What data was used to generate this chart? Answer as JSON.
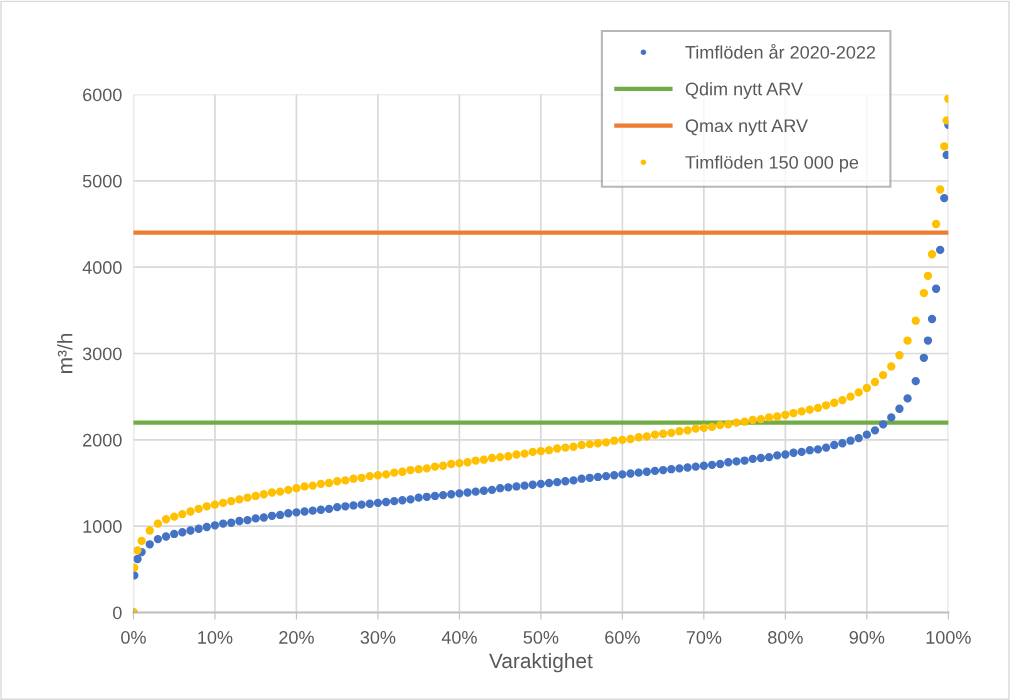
{
  "chart_data": {
    "type": "scatter",
    "xlabel": "Varaktighet",
    "ylabel": "m³/h",
    "x": [
      0,
      0.1,
      0.5,
      1,
      2,
      3,
      4,
      5,
      6,
      7,
      8,
      9,
      10,
      11,
      12,
      13,
      14,
      15,
      16,
      17,
      18,
      19,
      20,
      21,
      22,
      23,
      24,
      25,
      26,
      27,
      28,
      29,
      30,
      31,
      32,
      33,
      34,
      35,
      36,
      37,
      38,
      39,
      40,
      41,
      42,
      43,
      44,
      45,
      46,
      47,
      48,
      49,
      50,
      51,
      52,
      53,
      54,
      55,
      56,
      57,
      58,
      59,
      60,
      61,
      62,
      63,
      64,
      65,
      66,
      67,
      68,
      69,
      70,
      71,
      72,
      73,
      74,
      75,
      76,
      77,
      78,
      79,
      80,
      81,
      82,
      83,
      84,
      85,
      86,
      87,
      88,
      89,
      90,
      91,
      92,
      93,
      94,
      95,
      96,
      97,
      97.5,
      98,
      98.5,
      99,
      99.5,
      99.8,
      100
    ],
    "series": [
      {
        "name": "Timflöden år 2020-2022",
        "marker": "circle",
        "color": "#4472c4",
        "values": [
          0,
          430,
          620,
          700,
          790,
          850,
          880,
          910,
          930,
          950,
          970,
          990,
          1010,
          1030,
          1040,
          1060,
          1070,
          1090,
          1100,
          1120,
          1130,
          1150,
          1160,
          1170,
          1180,
          1190,
          1200,
          1220,
          1230,
          1240,
          1250,
          1260,
          1270,
          1280,
          1290,
          1300,
          1310,
          1330,
          1340,
          1350,
          1360,
          1370,
          1380,
          1390,
          1400,
          1410,
          1420,
          1440,
          1450,
          1460,
          1470,
          1480,
          1490,
          1500,
          1510,
          1520,
          1530,
          1550,
          1560,
          1570,
          1580,
          1590,
          1600,
          1610,
          1620,
          1630,
          1640,
          1650,
          1660,
          1670,
          1680,
          1690,
          1700,
          1710,
          1720,
          1740,
          1750,
          1760,
          1780,
          1790,
          1800,
          1820,
          1830,
          1850,
          1860,
          1880,
          1890,
          1910,
          1940,
          1960,
          1990,
          2020,
          2060,
          2110,
          2180,
          2260,
          2360,
          2480,
          2680,
          2950,
          3150,
          3400,
          3750,
          4200,
          4800,
          5300,
          5650
        ]
      },
      {
        "name": "Timflöden 150 000 pe",
        "marker": "circle",
        "color": "#ffc000",
        "values": [
          0,
          520,
          720,
          830,
          950,
          1030,
          1080,
          1110,
          1140,
          1170,
          1200,
          1230,
          1250,
          1270,
          1290,
          1310,
          1330,
          1350,
          1370,
          1390,
          1400,
          1420,
          1440,
          1460,
          1470,
          1490,
          1500,
          1520,
          1530,
          1550,
          1560,
          1580,
          1590,
          1600,
          1620,
          1630,
          1650,
          1660,
          1670,
          1690,
          1700,
          1720,
          1730,
          1740,
          1760,
          1770,
          1790,
          1800,
          1810,
          1830,
          1840,
          1860,
          1870,
          1880,
          1900,
          1910,
          1920,
          1940,
          1950,
          1960,
          1970,
          1990,
          2000,
          2010,
          2030,
          2040,
          2060,
          2070,
          2080,
          2100,
          2110,
          2130,
          2140,
          2150,
          2170,
          2180,
          2200,
          2210,
          2230,
          2240,
          2260,
          2270,
          2290,
          2310,
          2330,
          2350,
          2370,
          2400,
          2430,
          2460,
          2500,
          2550,
          2600,
          2670,
          2750,
          2850,
          2980,
          3150,
          3380,
          3700,
          3900,
          4150,
          4500,
          4900,
          5400,
          5700,
          5950
        ]
      }
    ],
    "xlim": [
      0,
      100
    ],
    "xticks": [
      {
        "value": 0,
        "label": "0%"
      },
      {
        "value": 10,
        "label": "10%"
      },
      {
        "value": 20,
        "label": "20%"
      },
      {
        "value": 30,
        "label": "30%"
      },
      {
        "value": 40,
        "label": "40%"
      },
      {
        "value": 50,
        "label": "50%"
      },
      {
        "value": 60,
        "label": "60%"
      },
      {
        "value": 70,
        "label": "70%"
      },
      {
        "value": 80,
        "label": "80%"
      },
      {
        "value": 90,
        "label": "90%"
      },
      {
        "value": 100,
        "label": "100%"
      }
    ],
    "ylim": [
      0,
      6000
    ],
    "yticks": [
      0,
      1000,
      2000,
      3000,
      4000,
      5000,
      6000
    ],
    "ref_lines": [
      {
        "axis": "y",
        "value": 2200,
        "label": "Qdim nytt ARV",
        "color": "#70ad47"
      },
      {
        "axis": "y",
        "value": 4400,
        "label": "Qmax nytt ARV",
        "color": "#ed7d31"
      }
    ],
    "grid": true,
    "legend": "top right"
  }
}
